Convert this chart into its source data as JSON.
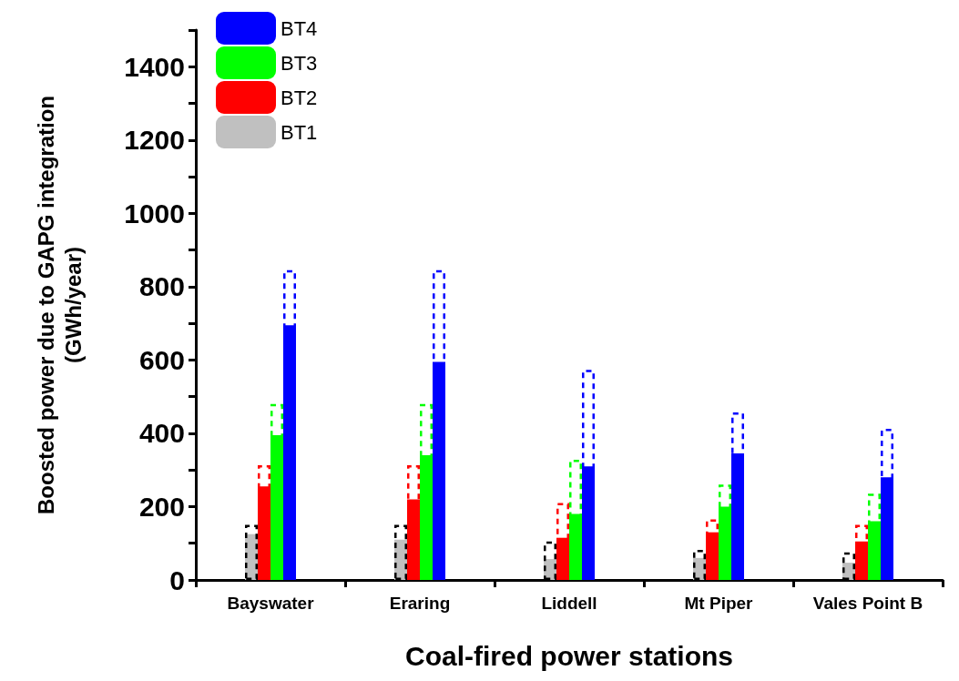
{
  "chart_data": {
    "type": "bar",
    "xlabel": "Coal-fired power stations",
    "ylabel": "Boosted power due to GAPG integration\n(GWh/year)",
    "categories": [
      "Bayswater",
      "Eraring",
      "Liddell",
      "Mt Piper",
      "Vales Point B"
    ],
    "ylim": [
      0,
      1500
    ],
    "yticks": [
      0,
      {
        "value": 100,
        "label": null
      },
      200,
      {
        "value": 300,
        "label": null
      },
      400,
      {
        "value": 500,
        "label": null
      },
      600,
      {
        "value": 700,
        "label": null
      },
      800,
      {
        "value": 900,
        "label": null
      },
      1000,
      {
        "value": 1100,
        "label": null
      },
      1200,
      {
        "value": 1300,
        "label": null
      },
      1400,
      {
        "value": 1500,
        "label": null
      }
    ],
    "legend": "top left",
    "grid": false,
    "series": [
      {
        "name": "BT1",
        "color": "#c0c0c0",
        "values": [
          125,
          110,
          57,
          60,
          47
        ]
      },
      {
        "name": "BT2",
        "color": "#ff0000",
        "values": [
          255,
          220,
          115,
          130,
          105
        ]
      },
      {
        "name": "BT3",
        "color": "#00ff00",
        "values": [
          395,
          340,
          180,
          200,
          160
        ]
      },
      {
        "name": "BT4",
        "color": "#0000ff",
        "values": [
          695,
          595,
          310,
          345,
          280
        ]
      },
      {
        "type": "bar",
        "line_style": "dashed",
        "color": "#000000",
        "values": [
          150,
          150,
          105,
          82,
          75
        ]
      },
      {
        "type": "bar",
        "line_style": "dashed",
        "color": "#ff0000",
        "values": [
          313,
          313,
          210,
          165,
          150
        ]
      },
      {
        "type": "bar",
        "line_style": "dashed",
        "color": "#00ff00",
        "values": [
          480,
          480,
          328,
          260,
          235
        ]
      },
      {
        "type": "bar",
        "line_style": "dashed",
        "color": "#0000ff",
        "values": [
          845,
          845,
          573,
          457,
          412
        ]
      }
    ]
  }
}
